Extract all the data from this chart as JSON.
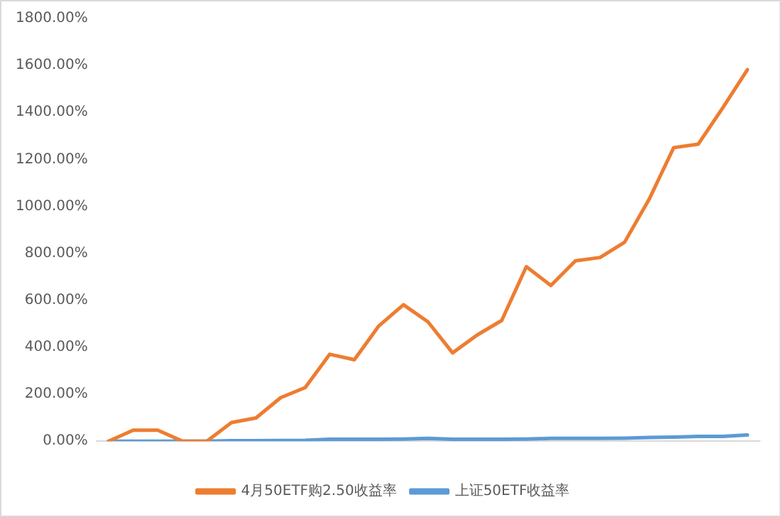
{
  "chart_data": {
    "type": "line",
    "categories": [
      null,
      null,
      null,
      null,
      null,
      null,
      null,
      null,
      null,
      null,
      null,
      null,
      null,
      null,
      null,
      null,
      null,
      null,
      null,
      null,
      null,
      null,
      null,
      null,
      null,
      null,
      null
    ],
    "series": [
      {
        "name": "4月50ETF购2.50收益率",
        "color": "#ed7d31",
        "values": [
          0,
          47,
          47,
          0,
          0,
          79,
          99,
          185,
          228,
          370,
          347,
          491,
          581,
          508,
          376,
          452,
          514,
          743,
          663,
          768,
          782,
          847,
          1030,
          1250,
          1265,
          1420,
          1582
        ]
      },
      {
        "name": "上证50ETF收益率",
        "color": "#5b9bd5",
        "values": [
          0,
          0,
          0,
          0,
          0,
          2,
          2,
          3,
          4,
          8,
          8,
          8,
          9,
          12,
          8,
          8,
          8,
          9,
          12,
          12,
          12,
          13,
          16,
          17,
          20,
          20,
          26
        ]
      }
    ],
    "ylim": [
      0,
      1800
    ],
    "yticks": [
      {
        "value": 0,
        "label": "0.00%"
      },
      {
        "value": 200,
        "label": "200.00%"
      },
      {
        "value": 400,
        "label": "400.00%"
      },
      {
        "value": 600,
        "label": "600.00%"
      },
      {
        "value": 800,
        "label": "800.00%"
      },
      {
        "value": 1000,
        "label": "1000.00%"
      },
      {
        "value": 1200,
        "label": "1200.00%"
      },
      {
        "value": 1400,
        "label": "1400.00%"
      },
      {
        "value": 1600,
        "label": "1600.00%"
      },
      {
        "value": 1800,
        "label": "1800.00%"
      }
    ],
    "grid": false,
    "legend": "bottom",
    "marker": "none",
    "line_style": "solid"
  }
}
